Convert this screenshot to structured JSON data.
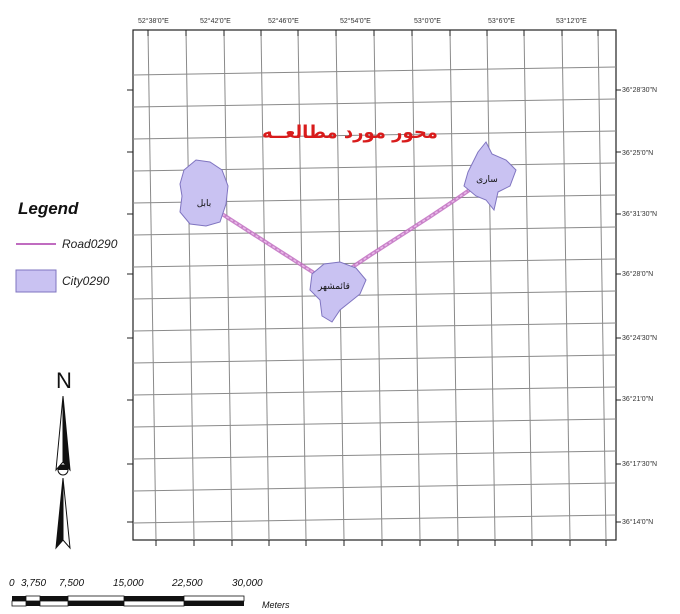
{
  "map_title": "محور مورد مطالعــه",
  "longitude_labels": [
    "52°38'0\"E",
    "52°42'0\"E",
    "52°46'0\"E",
    "52°54'0\"E",
    "53°0'0\"E",
    "53°6'0\"E",
    "53°12'0\"E"
  ],
  "latitude_labels": [
    "36°28'30\"N",
    "36°25'0\"N",
    "36°31'30\"N",
    "36°28'0\"N",
    "36°24'30\"N",
    "36°21'0\"N",
    "36°17'30\"N",
    "36°14'0\"N"
  ],
  "cities": [
    {
      "name": "بابل"
    },
    {
      "name": "قائمشهر"
    },
    {
      "name": "ساری"
    }
  ],
  "legend": {
    "title": "Legend",
    "items": [
      {
        "label": "Road0290",
        "symbol": "line",
        "color": "#c06cc0"
      },
      {
        "label": "City0290",
        "symbol": "polygon",
        "color": "#c9c2f2"
      }
    ]
  },
  "north_arrow": {
    "label": "N"
  },
  "scale_bar": {
    "labels": [
      "0",
      "3,750",
      "7,500",
      "15,000",
      "22,500",
      "30,000"
    ],
    "units": "Meters"
  },
  "colors": {
    "grid": "#8a8a8a",
    "frame": "#222222",
    "city_fill": "#c9c2f2",
    "city_stroke": "#7f74c0",
    "road": "#c06cc0",
    "title": "#d81b1b"
  }
}
